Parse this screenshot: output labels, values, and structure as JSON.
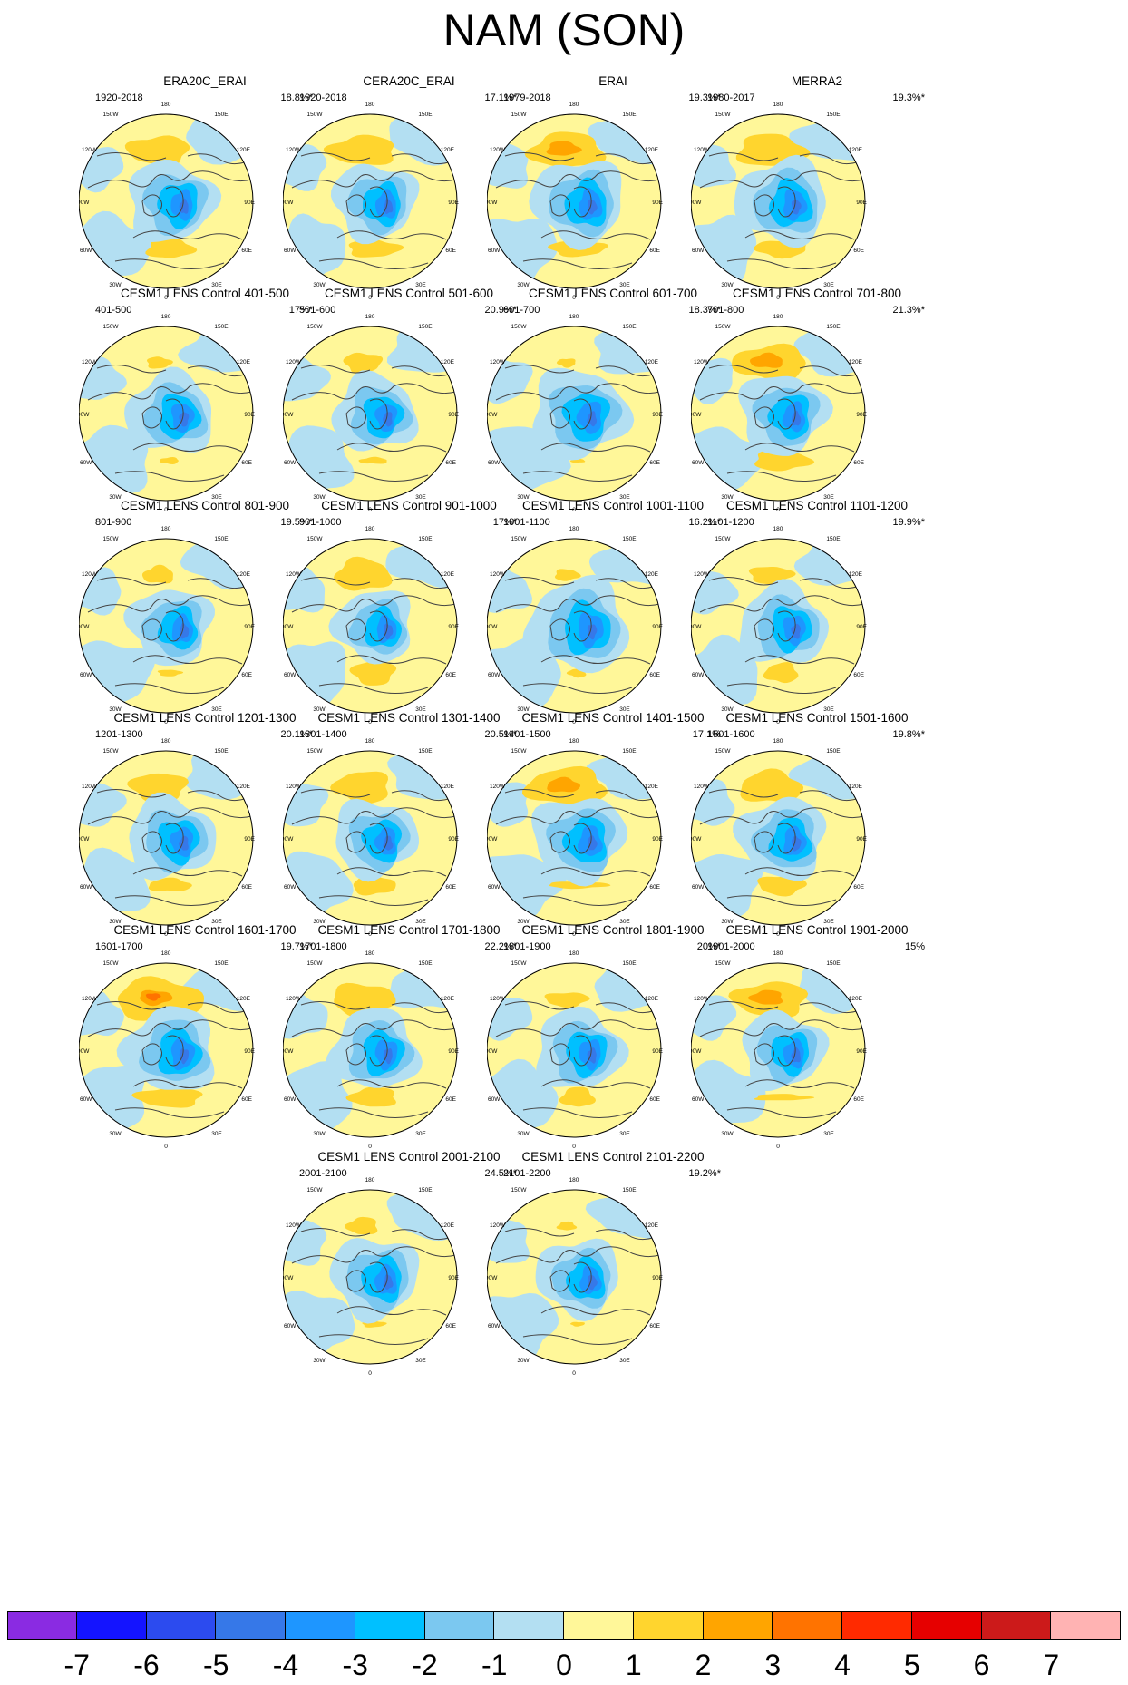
{
  "title": "NAM (SON)",
  "longitude_labels": [
    "180",
    "150W",
    "150E",
    "120W",
    "120E",
    "90W",
    "90E",
    "60W",
    "60E",
    "30W",
    "30E",
    "0"
  ],
  "panels": [
    {
      "title": "ERA20C_ERAI",
      "period": "1920-2018",
      "percent": "18.8%*",
      "variant": 0
    },
    {
      "title": "CERA20C_ERAI",
      "period": "1920-2018",
      "percent": "17.1%*",
      "variant": 1
    },
    {
      "title": "ERAI",
      "period": "1979-2018",
      "percent": "19.3%*",
      "variant": 2
    },
    {
      "title": "MERRA2",
      "period": "1980-2017",
      "percent": "19.3%*",
      "variant": 3
    },
    {
      "title": "CESM1 LENS Control 401-500",
      "period": "401-500",
      "percent": "17%*",
      "variant": 4
    },
    {
      "title": "CESM1 LENS Control 501-600",
      "period": "501-600",
      "percent": "20.9%*",
      "variant": 5
    },
    {
      "title": "CESM1 LENS Control 601-700",
      "period": "601-700",
      "percent": "18.3%*",
      "variant": 6
    },
    {
      "title": "CESM1 LENS Control 701-800",
      "period": "701-800",
      "percent": "21.3%*",
      "variant": 7
    },
    {
      "title": "CESM1 LENS Control 801-900",
      "period": "801-900",
      "percent": "19.5%*",
      "variant": 8
    },
    {
      "title": "CESM1 LENS Control 901-1000",
      "period": "901-1000",
      "percent": "17%*",
      "variant": 9
    },
    {
      "title": "CESM1 LENS Control 1001-1100",
      "period": "1001-1100",
      "percent": "16.2%*",
      "variant": 10
    },
    {
      "title": "CESM1 LENS Control 1101-1200",
      "period": "1101-1200",
      "percent": "19.9%*",
      "variant": 11
    },
    {
      "title": "CESM1 LENS Control 1201-1300",
      "period": "1201-1300",
      "percent": "20.1%*",
      "variant": 12
    },
    {
      "title": "CESM1 LENS Control 1301-1400",
      "period": "1301-1400",
      "percent": "20.5%*",
      "variant": 13
    },
    {
      "title": "CESM1 LENS Control 1401-1500",
      "period": "1401-1500",
      "percent": "17.1%",
      "variant": 14
    },
    {
      "title": "CESM1 LENS Control 1501-1600",
      "period": "1501-1600",
      "percent": "19.8%*",
      "variant": 15
    },
    {
      "title": "CESM1 LENS Control 1601-1700",
      "period": "1601-1700",
      "percent": "19.7%*",
      "variant": 16
    },
    {
      "title": "CESM1 LENS Control 1701-1800",
      "period": "1701-1800",
      "percent": "22.2%*",
      "variant": 17
    },
    {
      "title": "CESM1 LENS Control 1801-1900",
      "period": "1801-1900",
      "percent": "20%*",
      "variant": 18
    },
    {
      "title": "CESM1 LENS Control 1901-2000",
      "period": "1901-2000",
      "percent": "15%",
      "variant": 19
    },
    {
      "title": "CESM1 LENS Control 2001-2100",
      "period": "2001-2100",
      "percent": "24.5%*",
      "variant": 20
    },
    {
      "title": "CESM1 LENS Control 2101-2200",
      "period": "2101-2200",
      "percent": "19.2%*",
      "variant": 21
    }
  ],
  "colorbar": {
    "labels": [
      "-7",
      "-6",
      "-5",
      "-4",
      "-3",
      "-2",
      "-1",
      "0",
      "1",
      "2",
      "3",
      "4",
      "5",
      "6",
      "7"
    ],
    "colors": [
      "#8a2be2",
      "#1414ff",
      "#2c4bef",
      "#3678e8",
      "#1e96ff",
      "#00c0ff",
      "#7bc8f0",
      "#b3dff2",
      "#fff799",
      "#ffd52e",
      "#ffa500",
      "#ff7300",
      "#ff2a00",
      "#e60000",
      "#cc1a1a",
      "#ffb3b3"
    ]
  }
}
